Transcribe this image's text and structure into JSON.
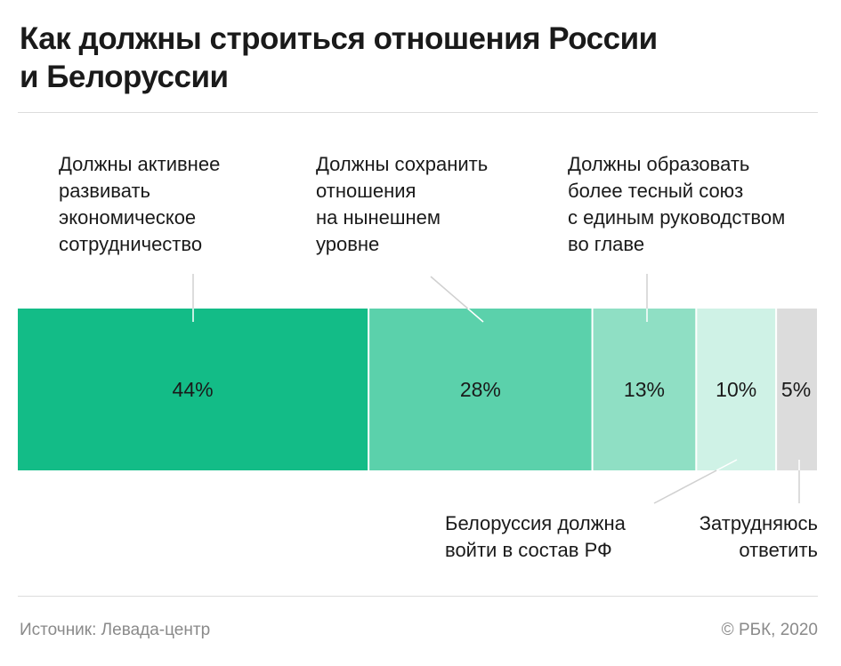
{
  "header": {
    "title_lines": [
      "Как должны строиться отношения России",
      "и Белоруссии"
    ]
  },
  "chart_data": {
    "type": "bar",
    "orientation": "horizontal-stacked-100",
    "title": "Как должны строиться отношения России и Белоруссии",
    "categories": [
      "Должны активнее развивать экономическое сотрудничество",
      "Должны сохранить отношения на нынешнем уровне",
      "Должны образовать более тесный союз с единым руководством во главе",
      "Белоруссия должна войти в состав РФ",
      "Затрудняюсь ответить"
    ],
    "values": [
      44,
      28,
      13,
      10,
      5
    ],
    "value_labels": [
      "44%",
      "28%",
      "13%",
      "10%",
      "5%"
    ],
    "colors": [
      "#13bc87",
      "#5bd1ab",
      "#8fdfc4",
      "#cff2e6",
      "#dcdcdc"
    ],
    "label_lines": [
      [
        "Должны активнее",
        "развивать",
        "экономическое",
        "сотрудничество"
      ],
      [
        "Должны сохранить",
        "отношения",
        "на нынешнем",
        "уровне"
      ],
      [
        "Должны образовать",
        "более тесный союз",
        "с единым руководством",
        "во главе"
      ],
      [
        "Белоруссия должна",
        "войти в состав РФ"
      ],
      [
        "Затрудняюсь",
        "ответить"
      ]
    ],
    "label_positions": [
      "top",
      "top",
      "top",
      "bottom",
      "bottom"
    ],
    "xlim": [
      0,
      100
    ]
  },
  "footer": {
    "source": "Источник: Левада-центр",
    "copyright": "© РБК, 2020"
  }
}
